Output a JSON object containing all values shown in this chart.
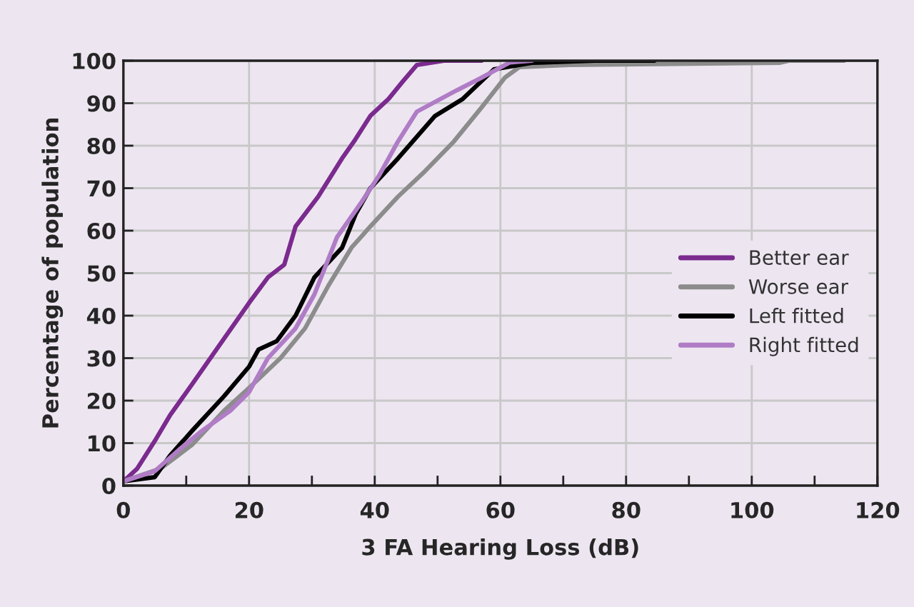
{
  "chart_data": {
    "type": "line",
    "xlabel": "3 FA Hearing Loss (dB)",
    "ylabel": "Percentage of population",
    "xlim": [
      0,
      120
    ],
    "ylim": [
      0,
      100
    ],
    "xticks": [
      0,
      {
        "value": 10,
        "label": null
      },
      20,
      {
        "value": 30,
        "label": null
      },
      40,
      {
        "value": 50,
        "label": null
      },
      60,
      {
        "value": 70,
        "label": null
      },
      80,
      {
        "value": 90,
        "label": null
      },
      100,
      {
        "value": 110,
        "label": null
      },
      120
    ],
    "yticks": [
      0,
      10,
      20,
      30,
      40,
      50,
      60,
      70,
      80,
      90,
      100
    ],
    "grid": true,
    "legend": "right",
    "marker": "none",
    "line_style": "solid",
    "series": [
      {
        "name": "Better ear",
        "color": "#7b2a8e",
        "x": [
          0,
          2.2,
          5.2,
          7.4,
          11,
          14.8,
          20,
          23,
          25.6,
          27.4,
          31,
          34.8,
          36.7,
          39.3,
          42.2,
          44.4,
          46.7,
          51,
          57
        ],
        "values": [
          1,
          4,
          11,
          16.5,
          24,
          32,
          43,
          49,
          52,
          61,
          68,
          77,
          81,
          87,
          91,
          95,
          99,
          100,
          100
        ]
      },
      {
        "name": "Worse ear",
        "color": "#8c8c8c",
        "x": [
          0,
          5.9,
          11,
          16,
          20,
          25,
          28.9,
          32.6,
          36.3,
          39.3,
          43.7,
          48,
          52.6,
          57,
          60.7,
          63,
          71,
          104.4,
          105.9,
          114.7
        ],
        "values": [
          1,
          4,
          9.7,
          17.6,
          23,
          30,
          37,
          47,
          56,
          61,
          68,
          74,
          81,
          89,
          96,
          98.5,
          99,
          99.5,
          100,
          100
        ]
      },
      {
        "name": "Left fitted",
        "color": "#000000",
        "x": [
          0,
          5,
          7.4,
          11,
          16,
          20,
          21.5,
          24.4,
          27.4,
          30.4,
          34.8,
          37,
          39.3,
          43.7,
          49.6,
          54,
          59,
          65,
          75,
          84.5
        ],
        "values": [
          1,
          2,
          7,
          13,
          21,
          28,
          32,
          34,
          40,
          49,
          56,
          64,
          70,
          77,
          87,
          91,
          98,
          99.5,
          100,
          100
        ]
      },
      {
        "name": "Right fitted",
        "color": "#b07cc6",
        "x": [
          0,
          5,
          8.9,
          12.6,
          17,
          20,
          23,
          27.4,
          30.4,
          34,
          37.8,
          40.7,
          43.7,
          46.7,
          53,
          57,
          61.5,
          65
        ],
        "values": [
          1,
          3.4,
          8.5,
          13,
          17.6,
          22,
          30,
          37,
          45,
          58.5,
          66.5,
          73,
          81,
          88,
          93,
          96,
          99.6,
          100
        ]
      }
    ]
  }
}
